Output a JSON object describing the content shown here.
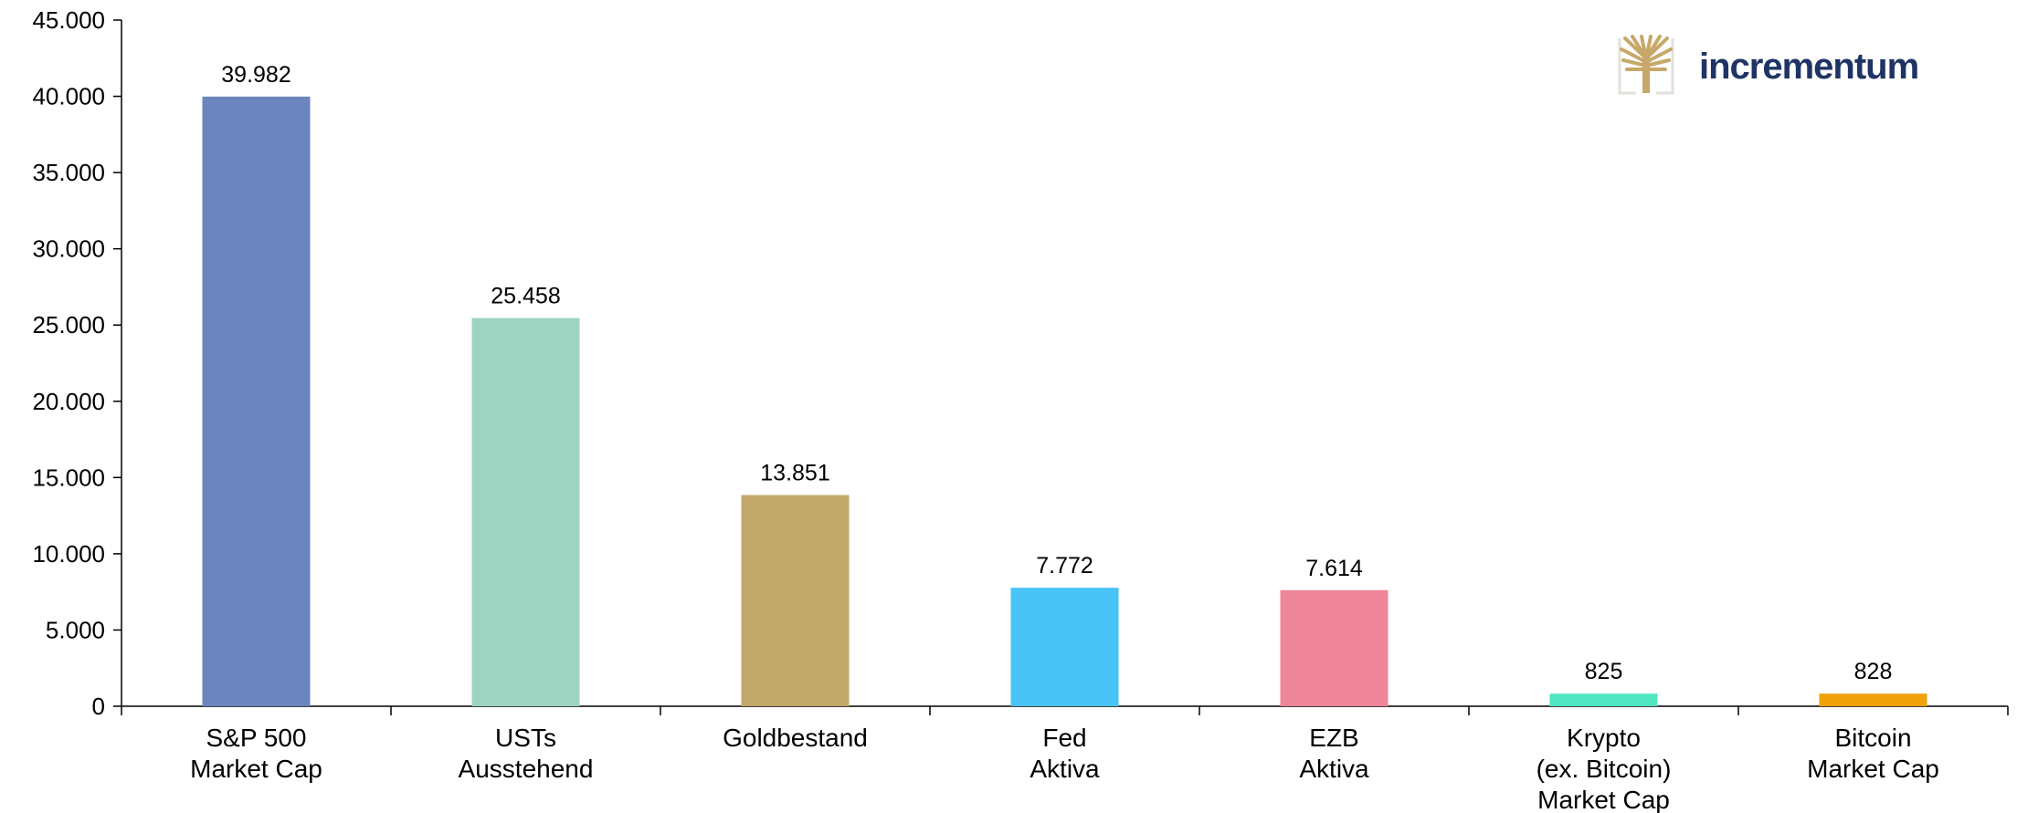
{
  "chart_data": {
    "type": "bar",
    "title": "",
    "xlabel": "",
    "ylabel": "",
    "ylim": [
      0,
      45000
    ],
    "yticks": [
      0,
      5000,
      10000,
      15000,
      20000,
      25000,
      30000,
      35000,
      40000,
      45000
    ],
    "ytick_labels": [
      "0",
      "5.000",
      "10.000",
      "15.000",
      "20.000",
      "25.000",
      "30.000",
      "35.000",
      "40.000",
      "45.000"
    ],
    "grid": false,
    "categories": [
      [
        "S&P 500",
        "Market Cap"
      ],
      [
        "USTs",
        "Ausstehend"
      ],
      [
        "Goldbestand"
      ],
      [
        "Fed",
        "Aktiva"
      ],
      [
        "EZB",
        "Aktiva"
      ],
      [
        "Krypto",
        "(ex. Bitcoin)",
        "Market Cap"
      ],
      [
        "Bitcoin",
        "Market Cap"
      ]
    ],
    "values": [
      39982,
      25458,
      13851,
      7772,
      7614,
      825,
      828
    ],
    "value_labels": [
      "39.982",
      "25.458",
      "13.851",
      "7.772",
      "7.614",
      "825",
      "828"
    ],
    "colors": [
      "#6b86be",
      "#9dd4c1",
      "#c3a86c",
      "#49c3f5",
      "#ee8598",
      "#50e6c1",
      "#f1a10a"
    ]
  },
  "logo": {
    "text": "incrementum",
    "text_color": "#1f3464",
    "icon_color": "#c7a86a",
    "icon": "tree-logo-icon"
  }
}
